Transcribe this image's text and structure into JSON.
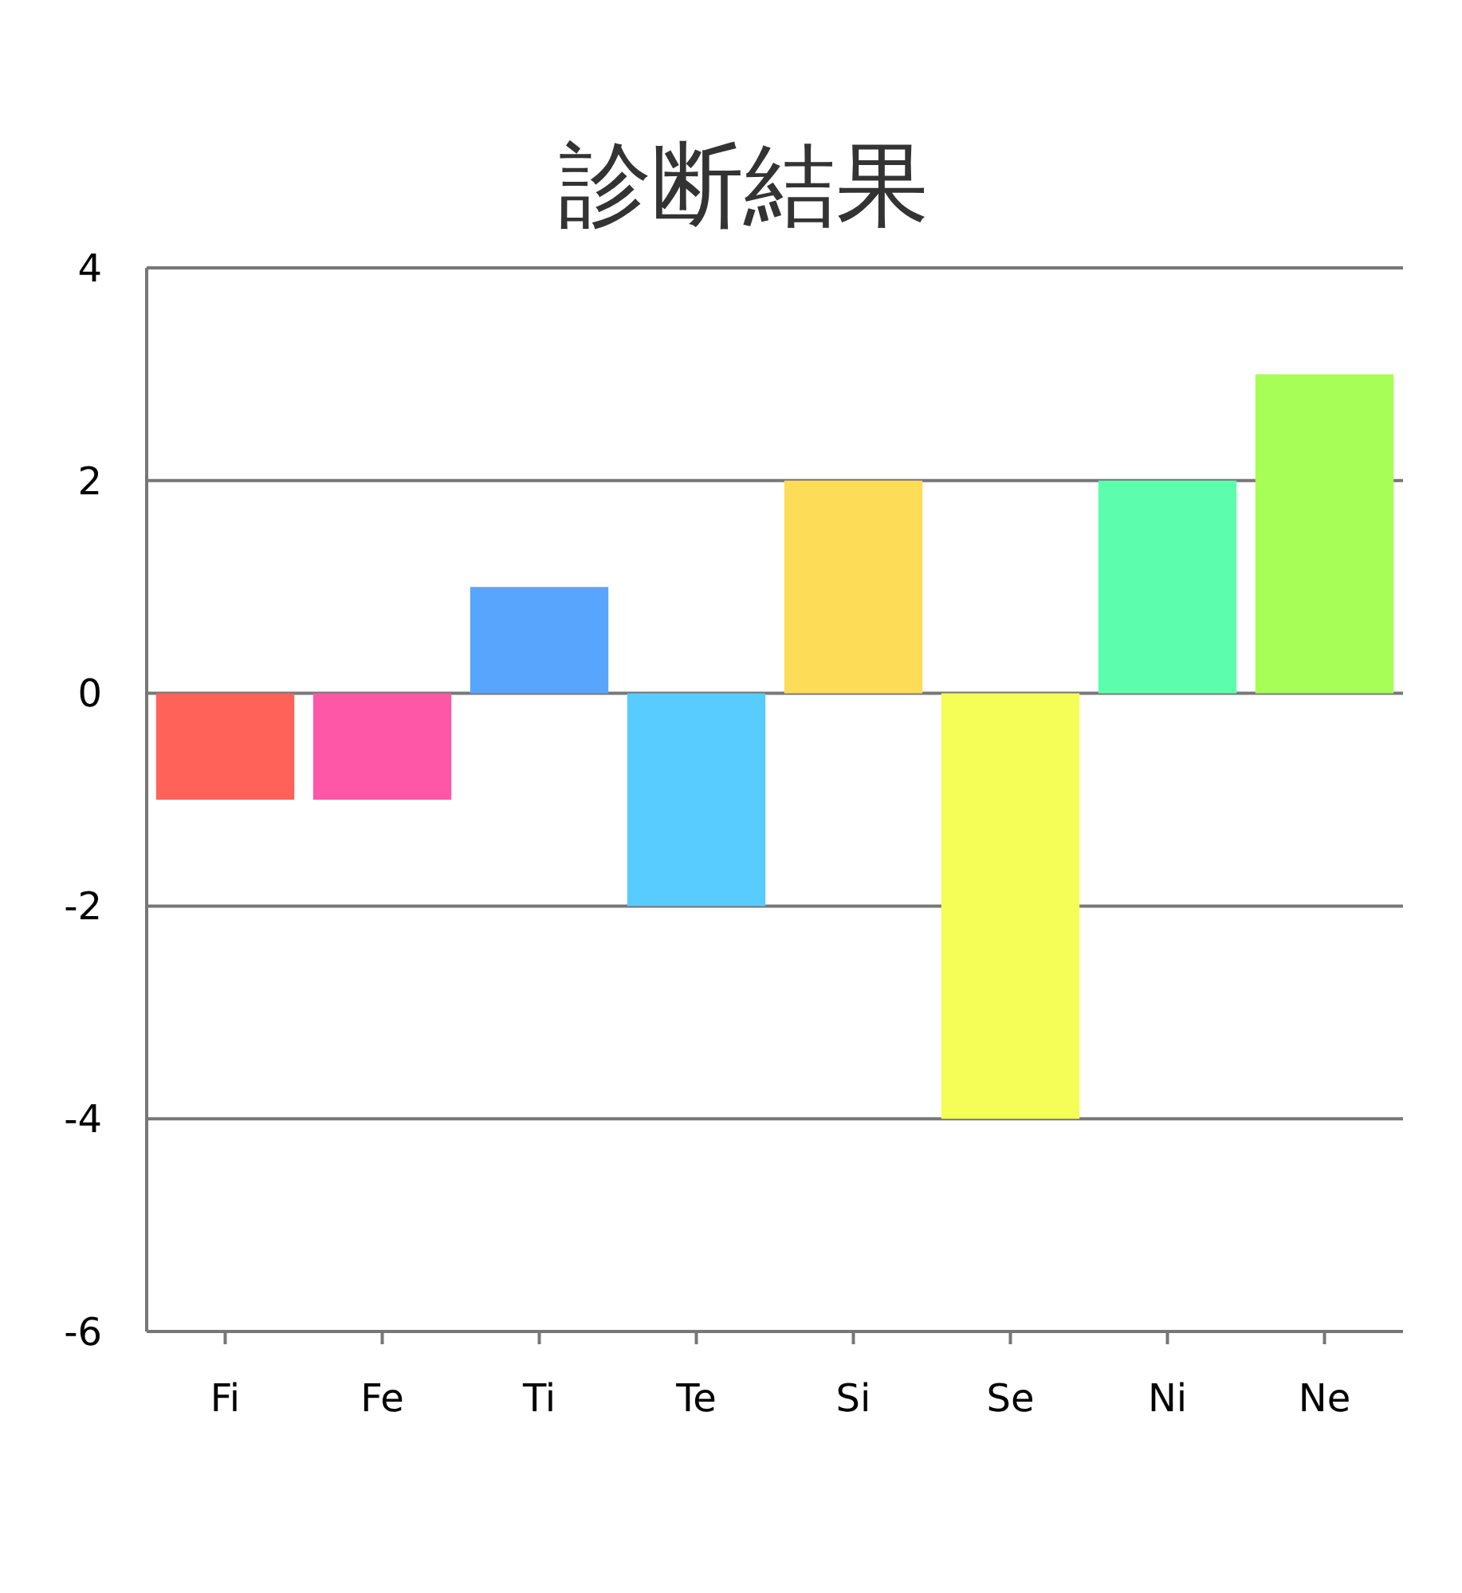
{
  "chart_data": {
    "type": "bar",
    "title": "診断結果",
    "categories": [
      "Fi",
      "Fe",
      "Ti",
      "Te",
      "Si",
      "Se",
      "Ni",
      "Ne"
    ],
    "values": [
      -1,
      -1,
      1,
      -2,
      2,
      -4,
      2,
      3
    ],
    "colors": [
      "#fe6259",
      "#fe57a8",
      "#58a5fe",
      "#58ccfe",
      "#fddc57",
      "#f5fe57",
      "#5cfeae",
      "#a6fe57"
    ],
    "ylim": [
      -6,
      4
    ],
    "yticks": [
      -6,
      -4,
      -2,
      0,
      2,
      4
    ],
    "grid": "y"
  }
}
